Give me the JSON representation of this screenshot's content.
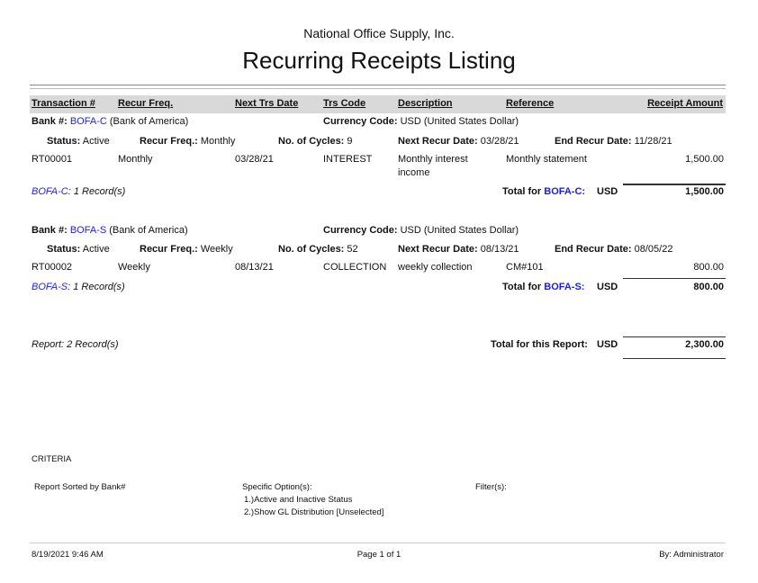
{
  "company": "National Office Supply, Inc.",
  "title": "Recurring Receipts Listing",
  "columns": [
    "Transaction #",
    "Recur Freq.",
    "Next Trs Date",
    "Trs Code",
    "Description",
    "Reference",
    "Receipt Amount"
  ],
  "labels": {
    "bank": "Bank #:",
    "currency": "Currency Code:",
    "status": "Status:",
    "recur_freq": "Recur Freq.:",
    "cycles": "No. of Cycles:",
    "next_recur": "Next Recur Date:",
    "end_recur": "End Recur Date:",
    "total_for": "Total for",
    "usd": "USD"
  },
  "groups": [
    {
      "bank_id": "BOFA-C",
      "bank_name": "(Bank of America)",
      "currency": "USD (United States Dollar)",
      "status": "Active",
      "recur_freq": "Monthly",
      "cycles": "9",
      "next_recur": "03/28/21",
      "end_recur": "11/28/21",
      "row": {
        "trans": "RT00001",
        "freq": "Monthly",
        "date": "03/28/21",
        "code": "INTEREST",
        "desc1": "Monthly interest",
        "desc2": "income",
        "ref": "Monthly statement",
        "amount": "1,500.00"
      },
      "records": ": 1 Record(s)",
      "total_label": "Total for",
      "total_bank": "BOFA-C:",
      "total": "1,500.00"
    },
    {
      "bank_id": "BOFA-S",
      "bank_name": "(Bank of America)",
      "currency": "USD (United States Dollar)",
      "status": "Active",
      "recur_freq": "Weekly",
      "cycles": "52",
      "next_recur": "08/13/21",
      "end_recur": "08/05/22",
      "row": {
        "trans": "RT00002",
        "freq": "Weekly",
        "date": "08/13/21",
        "code": "COLLECTION",
        "desc1": "weekly collection",
        "desc2": "",
        "ref": "CM#101",
        "amount": "800.00"
      },
      "records": ": 1 Record(s)",
      "total_label": "Total for",
      "total_bank": "BOFA-S:",
      "total": "800.00"
    }
  ],
  "report": {
    "records": "Report: 2 Record(s)",
    "total_label": "Total for this Report:",
    "currency": "USD",
    "total": "2,300.00"
  },
  "criteria": {
    "heading": "CRITERIA",
    "sorted": "Report Sorted by Bank#",
    "options_label": "Specific Option(s):",
    "option1": "1.)Active and Inactive Status",
    "option2": "2.)Show GL Distribution [Unselected]",
    "filters_label": "Filter(s):"
  },
  "footer": {
    "datetime": "8/19/2021 9:46 AM",
    "page": "Page 1 of 1",
    "by": "By: Administrator"
  },
  "colors": {
    "link": "#1a1aff",
    "header_bg": "#d9d9d9"
  }
}
